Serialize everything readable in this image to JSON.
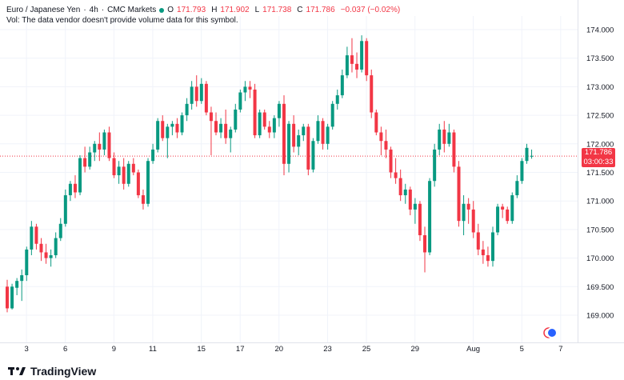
{
  "legend": {
    "symbol": "Euro / Japanese Yen",
    "interval": "4h",
    "source": "CMC Markets",
    "open_label": "O",
    "open": "171.793",
    "high_label": "H",
    "high": "171.902",
    "low_label": "L",
    "low": "171.738",
    "close_label": "C",
    "close": "171.786",
    "change": "−0.037 (−0.02%)",
    "volume_note": "Vol: The data vendor doesn't provide volume data for this symbol."
  },
  "last_price": {
    "price": "171.786",
    "countdown": "03:00:33"
  },
  "colors": {
    "up": "#089981",
    "down": "#f23645",
    "grid": "#f0f3fa",
    "axis_text": "#131722"
  },
  "footer": {
    "brand": "TradingView",
    "logo_icon": "tradingview-logo-icon"
  },
  "chart_data": {
    "type": "candlestick",
    "y_axis_ticks": [
      "174.000",
      "173.500",
      "173.000",
      "172.500",
      "172.000",
      "171.500",
      "171.000",
      "170.500",
      "170.000",
      "169.500",
      "169.000"
    ],
    "ylim": [
      168.65,
      174.25
    ],
    "x_axis_ticks": [
      {
        "label": "3",
        "bar": 2
      },
      {
        "label": "6",
        "bar": 10
      },
      {
        "label": "9",
        "bar": 20
      },
      {
        "label": "11",
        "bar": 28
      },
      {
        "label": "15",
        "bar": 38
      },
      {
        "label": "17",
        "bar": 46
      },
      {
        "label": "20",
        "bar": 54
      },
      {
        "label": "23",
        "bar": 64
      },
      {
        "label": "25",
        "bar": 72
      },
      {
        "label": "29",
        "bar": 82
      },
      {
        "label": "Aug",
        "bar": 94
      },
      {
        "label": "5",
        "bar": 104
      },
      {
        "label": "7",
        "bar": 112
      }
    ],
    "candles": [
      [
        169.5,
        169.62,
        169.05,
        169.12
      ],
      [
        169.12,
        169.55,
        169.1,
        169.5
      ],
      [
        169.48,
        169.65,
        169.35,
        169.6
      ],
      [
        169.6,
        169.8,
        169.25,
        169.7
      ],
      [
        169.7,
        170.2,
        169.6,
        170.15
      ],
      [
        170.15,
        170.65,
        170.05,
        170.55
      ],
      [
        170.55,
        170.6,
        170.15,
        170.25
      ],
      [
        170.25,
        170.35,
        169.95,
        170.1
      ],
      [
        170.1,
        170.25,
        169.9,
        170.0
      ],
      [
        170.0,
        170.15,
        169.85,
        170.05
      ],
      [
        170.05,
        170.45,
        170.0,
        170.35
      ],
      [
        170.35,
        170.7,
        170.3,
        170.6
      ],
      [
        170.6,
        171.2,
        170.55,
        171.1
      ],
      [
        171.1,
        171.35,
        171.0,
        171.3
      ],
      [
        171.3,
        171.45,
        171.05,
        171.15
      ],
      [
        171.15,
        171.8,
        171.1,
        171.75
      ],
      [
        171.75,
        171.95,
        171.5,
        171.6
      ],
      [
        171.6,
        171.95,
        171.55,
        171.85
      ],
      [
        171.85,
        172.05,
        171.7,
        172.0
      ],
      [
        172.0,
        172.2,
        171.7,
        171.9
      ],
      [
        171.9,
        172.25,
        171.8,
        172.2
      ],
      [
        172.2,
        172.3,
        171.7,
        171.75
      ],
      [
        171.75,
        171.85,
        171.4,
        171.45
      ],
      [
        171.45,
        171.7,
        171.3,
        171.6
      ],
      [
        171.6,
        171.75,
        171.2,
        171.3
      ],
      [
        171.3,
        171.7,
        171.25,
        171.65
      ],
      [
        171.65,
        171.75,
        171.45,
        171.5
      ],
      [
        171.5,
        171.55,
        171.05,
        171.1
      ],
      [
        171.1,
        171.2,
        170.85,
        170.95
      ],
      [
        170.95,
        171.75,
        170.9,
        171.7
      ],
      [
        171.7,
        172.0,
        171.65,
        171.9
      ],
      [
        171.9,
        172.45,
        171.85,
        172.4
      ],
      [
        172.4,
        172.5,
        172.05,
        172.1
      ],
      [
        172.1,
        172.35,
        171.75,
        172.3
      ],
      [
        172.3,
        172.4,
        172.15,
        172.35
      ],
      [
        172.35,
        172.45,
        172.1,
        172.2
      ],
      [
        172.2,
        172.55,
        172.15,
        172.5
      ],
      [
        172.5,
        172.8,
        172.4,
        172.7
      ],
      [
        172.7,
        173.1,
        172.6,
        173.0
      ],
      [
        173.0,
        173.2,
        172.65,
        172.75
      ],
      [
        172.75,
        173.15,
        172.7,
        173.05
      ],
      [
        173.05,
        173.1,
        172.5,
        172.55
      ],
      [
        172.55,
        172.65,
        171.8,
        172.4
      ],
      [
        172.4,
        172.55,
        172.15,
        172.2
      ],
      [
        172.2,
        172.45,
        172.1,
        172.35
      ],
      [
        172.35,
        172.6,
        172.0,
        172.1
      ],
      [
        172.1,
        172.3,
        171.85,
        172.25
      ],
      [
        172.25,
        172.7,
        172.2,
        172.6
      ],
      [
        172.6,
        172.95,
        172.55,
        172.9
      ],
      [
        172.9,
        173.1,
        172.75,
        173.0
      ],
      [
        173.0,
        173.1,
        172.8,
        172.95
      ],
      [
        172.95,
        173.05,
        172.1,
        172.15
      ],
      [
        172.15,
        172.6,
        172.1,
        172.55
      ],
      [
        172.55,
        172.6,
        172.25,
        172.3
      ],
      [
        172.3,
        172.4,
        172.1,
        172.2
      ],
      [
        172.2,
        172.5,
        172.1,
        172.45
      ],
      [
        172.45,
        172.75,
        172.3,
        172.7
      ],
      [
        172.7,
        172.85,
        171.45,
        171.65
      ],
      [
        171.65,
        172.4,
        171.5,
        172.35
      ],
      [
        172.35,
        172.5,
        171.85,
        171.95
      ],
      [
        171.95,
        172.25,
        171.8,
        172.15
      ],
      [
        172.15,
        172.35,
        172.05,
        172.3
      ],
      [
        172.3,
        172.35,
        171.45,
        171.55
      ],
      [
        171.55,
        172.1,
        171.5,
        172.05
      ],
      [
        172.05,
        172.5,
        172.0,
        172.4
      ],
      [
        172.4,
        172.45,
        171.9,
        172.0
      ],
      [
        172.0,
        172.35,
        171.9,
        172.3
      ],
      [
        172.3,
        172.75,
        172.25,
        172.7
      ],
      [
        172.7,
        172.95,
        172.6,
        172.85
      ],
      [
        172.85,
        173.3,
        172.8,
        173.2
      ],
      [
        173.2,
        173.7,
        173.15,
        173.55
      ],
      [
        173.55,
        173.85,
        173.25,
        173.4
      ],
      [
        173.4,
        173.6,
        173.15,
        173.3
      ],
      [
        173.3,
        173.9,
        173.25,
        173.8
      ],
      [
        173.8,
        173.85,
        173.1,
        173.2
      ],
      [
        173.2,
        173.3,
        172.45,
        172.55
      ],
      [
        172.55,
        172.6,
        172.15,
        172.2
      ],
      [
        172.2,
        172.3,
        171.8,
        172.05
      ],
      [
        172.05,
        172.25,
        171.75,
        171.9
      ],
      [
        171.9,
        171.95,
        171.4,
        171.5
      ],
      [
        171.5,
        171.75,
        171.3,
        171.4
      ],
      [
        171.4,
        171.55,
        171.0,
        171.1
      ],
      [
        171.1,
        171.3,
        170.95,
        171.2
      ],
      [
        171.2,
        171.25,
        170.75,
        170.85
      ],
      [
        170.85,
        171.05,
        170.6,
        170.95
      ],
      [
        170.95,
        171.0,
        170.3,
        170.4
      ],
      [
        170.4,
        170.55,
        169.75,
        170.1
      ],
      [
        170.1,
        171.4,
        170.05,
        171.35
      ],
      [
        171.35,
        172.0,
        171.25,
        171.9
      ],
      [
        171.9,
        172.35,
        171.8,
        172.25
      ],
      [
        172.25,
        172.4,
        171.85,
        172.0
      ],
      [
        172.0,
        172.35,
        171.95,
        172.2
      ],
      [
        172.2,
        172.25,
        171.5,
        171.6
      ],
      [
        171.6,
        171.7,
        170.55,
        170.65
      ],
      [
        170.65,
        171.1,
        170.4,
        170.95
      ],
      [
        170.95,
        171.05,
        170.6,
        170.85
      ],
      [
        170.85,
        171.0,
        170.35,
        170.45
      ],
      [
        170.45,
        170.6,
        170.05,
        170.15
      ],
      [
        170.15,
        170.3,
        169.9,
        170.05
      ],
      [
        170.05,
        170.2,
        169.85,
        169.95
      ],
      [
        169.95,
        170.55,
        169.85,
        170.45
      ],
      [
        170.45,
        170.95,
        170.4,
        170.9
      ],
      [
        170.9,
        170.95,
        170.7,
        170.85
      ],
      [
        170.85,
        170.9,
        170.6,
        170.65
      ],
      [
        170.65,
        171.15,
        170.6,
        171.1
      ],
      [
        171.1,
        171.45,
        171.05,
        171.35
      ],
      [
        171.35,
        171.75,
        171.3,
        171.7
      ],
      [
        171.7,
        172.0,
        171.65,
        171.93
      ],
      [
        171.79,
        171.9,
        171.74,
        171.79
      ]
    ]
  }
}
